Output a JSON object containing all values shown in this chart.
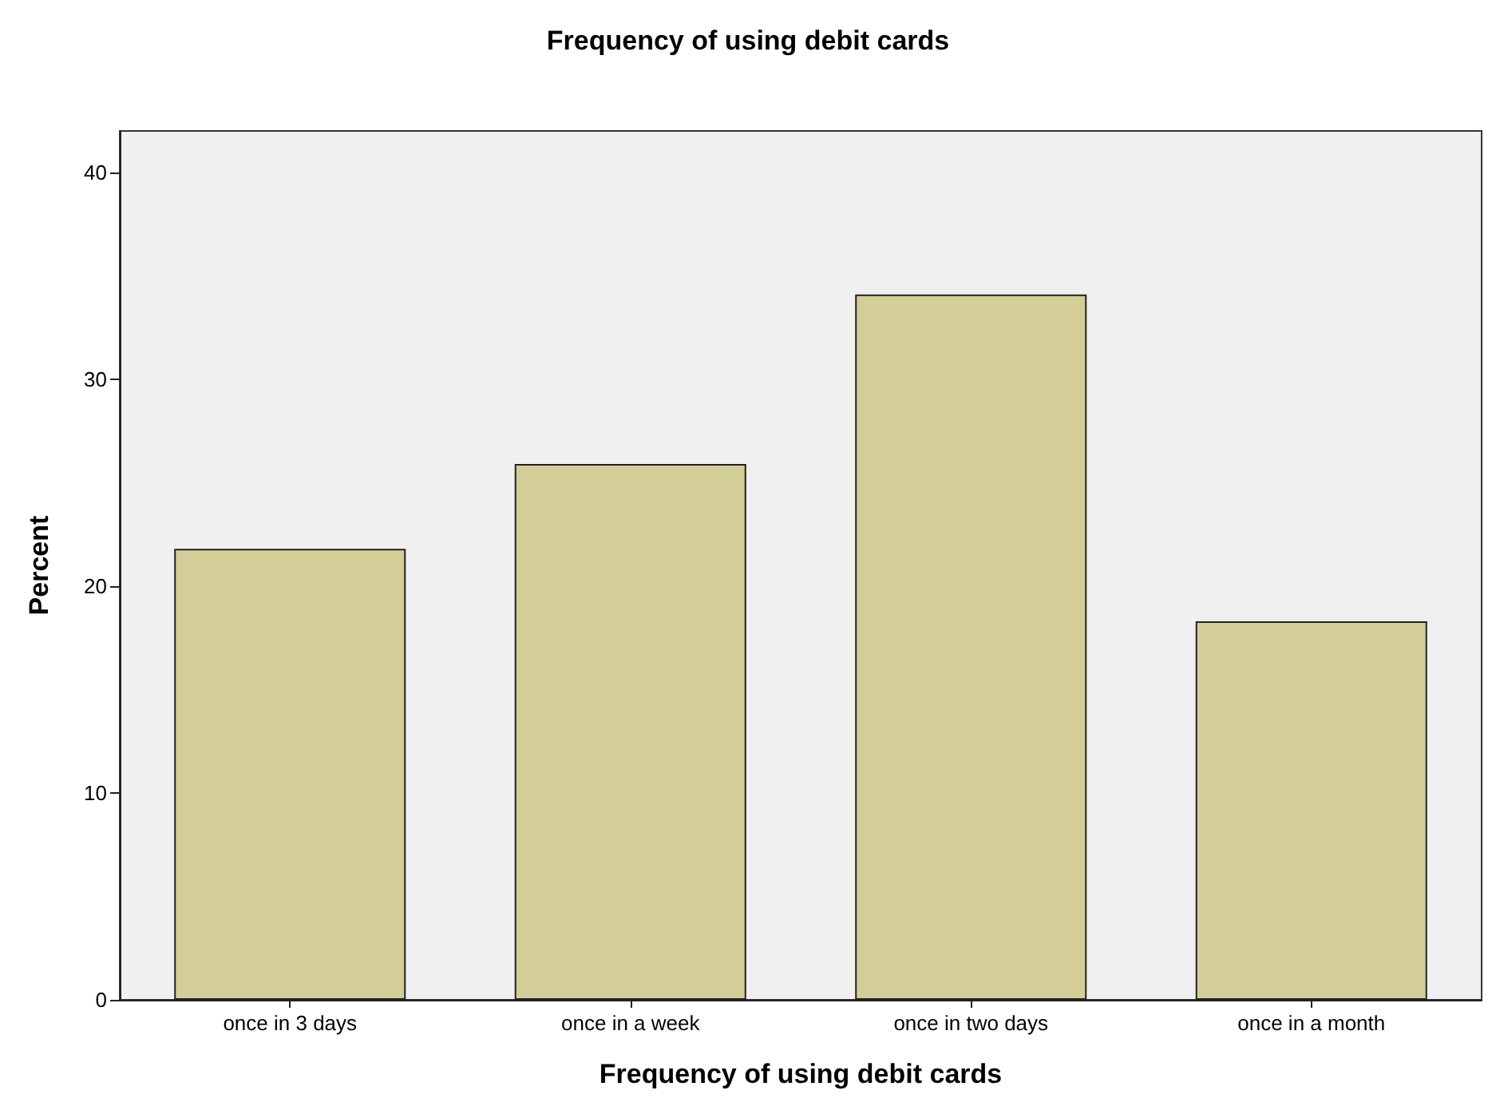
{
  "chart_data": {
    "type": "bar",
    "title": "Frequency of using debit cards",
    "xlabel": "Frequency of using debit cards",
    "ylabel": "Percent",
    "categories": [
      "once in 3 days",
      "once in a week",
      "once in two days",
      "once in a month"
    ],
    "values": [
      21.8,
      25.9,
      34.1,
      18.3
    ],
    "color": "#d3ce97",
    "ylim": [
      0,
      42
    ],
    "yticks": [
      0,
      10,
      20,
      30,
      40
    ],
    "grid": false
  }
}
